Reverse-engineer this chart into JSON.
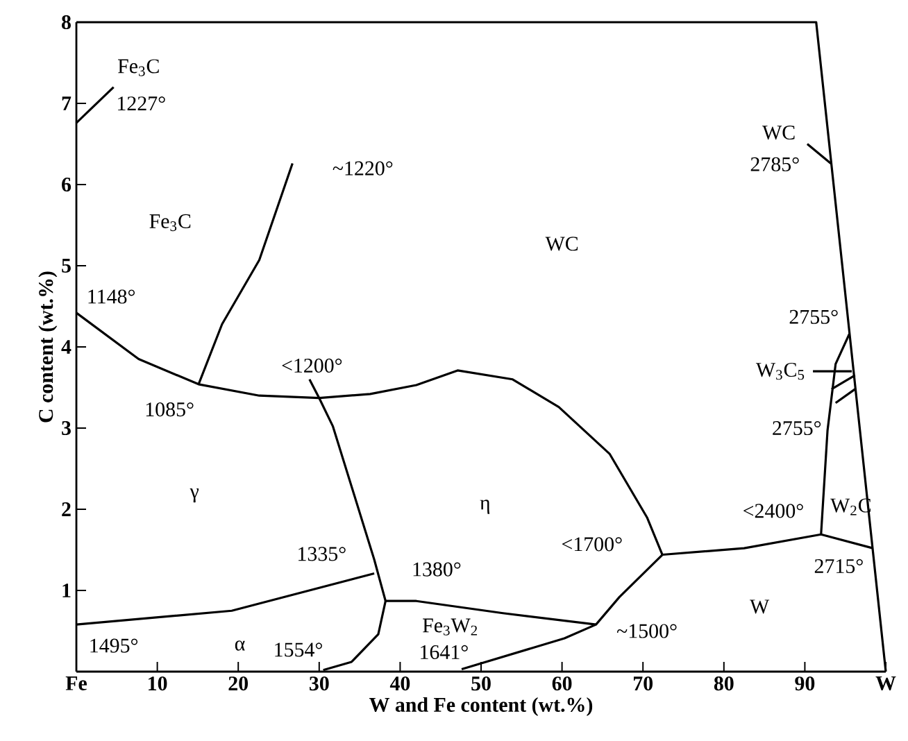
{
  "chart_data": {
    "type": "line",
    "xlabel": "W and Fe content (wt.%)",
    "ylabel": "C content (wt.%)",
    "xlim": [
      0,
      100
    ],
    "ylim": [
      0,
      8
    ],
    "xticks": [
      {
        "value": 0,
        "label": "Fe"
      },
      10,
      20,
      30,
      40,
      50,
      60,
      70,
      80,
      90,
      {
        "value": 100,
        "label": "W"
      }
    ],
    "yticks": [
      1,
      2,
      3,
      4,
      5,
      6,
      7,
      8
    ],
    "series": [
      {
        "color": "#000000",
        "x": [
          0,
          91.4,
          100
        ],
        "values": [
          8,
          8,
          0
        ]
      },
      {
        "color": "#000000",
        "x": [
          0,
          7.7,
          15.1,
          22.6,
          30,
          36.3,
          42,
          47.1,
          53.9,
          59.6,
          65.9,
          70.5,
          72.4
        ],
        "values": [
          4.42,
          3.85,
          3.54,
          3.4,
          3.37,
          3.42,
          3.53,
          3.71,
          3.6,
          3.26,
          2.68,
          1.9,
          1.44
        ]
      },
      {
        "color": "#000000",
        "x": [
          26.7,
          22.6,
          18,
          15.1
        ],
        "values": [
          6.26,
          5.07,
          4.28,
          3.54
        ]
      },
      {
        "color": "#000000",
        "x": [
          28.8,
          30,
          31.7,
          36.8,
          38.2
        ],
        "values": [
          3.6,
          3.37,
          3.02,
          1.38,
          0.87
        ]
      },
      {
        "color": "#000000",
        "x": [
          0,
          19.2,
          36.8
        ],
        "values": [
          0.58,
          0.75,
          1.21
        ]
      },
      {
        "color": "#000000",
        "x": [
          38.2,
          37.3,
          34,
          30.5
        ],
        "values": [
          0.87,
          0.46,
          0.12,
          0.02
        ]
      },
      {
        "color": "#000000",
        "x": [
          38.2,
          42,
          52.7,
          64.2
        ],
        "values": [
          0.87,
          0.87,
          0.72,
          0.58
        ]
      },
      {
        "color": "#000000",
        "x": [
          47.6,
          60.3,
          64.2,
          67.1,
          72.4
        ],
        "values": [
          0.03,
          0.41,
          0.58,
          0.92,
          1.44
        ]
      },
      {
        "color": "#000000",
        "x": [
          72.4,
          82.5,
          92,
          98.4
        ],
        "values": [
          1.44,
          1.52,
          1.69,
          1.52
        ]
      },
      {
        "color": "#000000",
        "x": [
          92,
          92.8,
          93.8,
          95.5
        ],
        "values": [
          1.69,
          2.97,
          3.79,
          4.16
        ]
      },
      {
        "color": "#000000",
        "x": [
          93.3,
          96.2
        ],
        "values": [
          3.48,
          3.65
        ]
      },
      {
        "color": "#000000",
        "x": [
          93.8,
          96.2
        ],
        "values": [
          3.31,
          3.48
        ]
      },
      {
        "color": "#000000",
        "x": [
          0,
          4.6
        ],
        "values": [
          6.76,
          7.2
        ]
      },
      {
        "color": "#000000",
        "x": [
          90.3,
          93.2
        ],
        "values": [
          6.5,
          6.26
        ]
      },
      {
        "color": "#000000",
        "x": [
          91,
          95.8
        ],
        "values": [
          3.7,
          3.7
        ]
      }
    ],
    "annotations": [
      "Fe$_{3}$C",
      "1227°",
      "~1220°",
      "Fe$_{3}$C",
      "WC",
      "WC",
      "2785°",
      "1148°",
      "<1200°",
      "2755°",
      "W$_{3}$C$_{5}$",
      "2755°",
      "1085°",
      "γ",
      "η",
      "W$_{2}$C",
      "<2400°",
      "<1700°",
      "1335°",
      "1380°",
      "2715°",
      "Fe$_{3}$W$_{2}$",
      "W",
      "~1500°",
      "1495°",
      "α",
      "1554°",
      "1641°"
    ]
  }
}
